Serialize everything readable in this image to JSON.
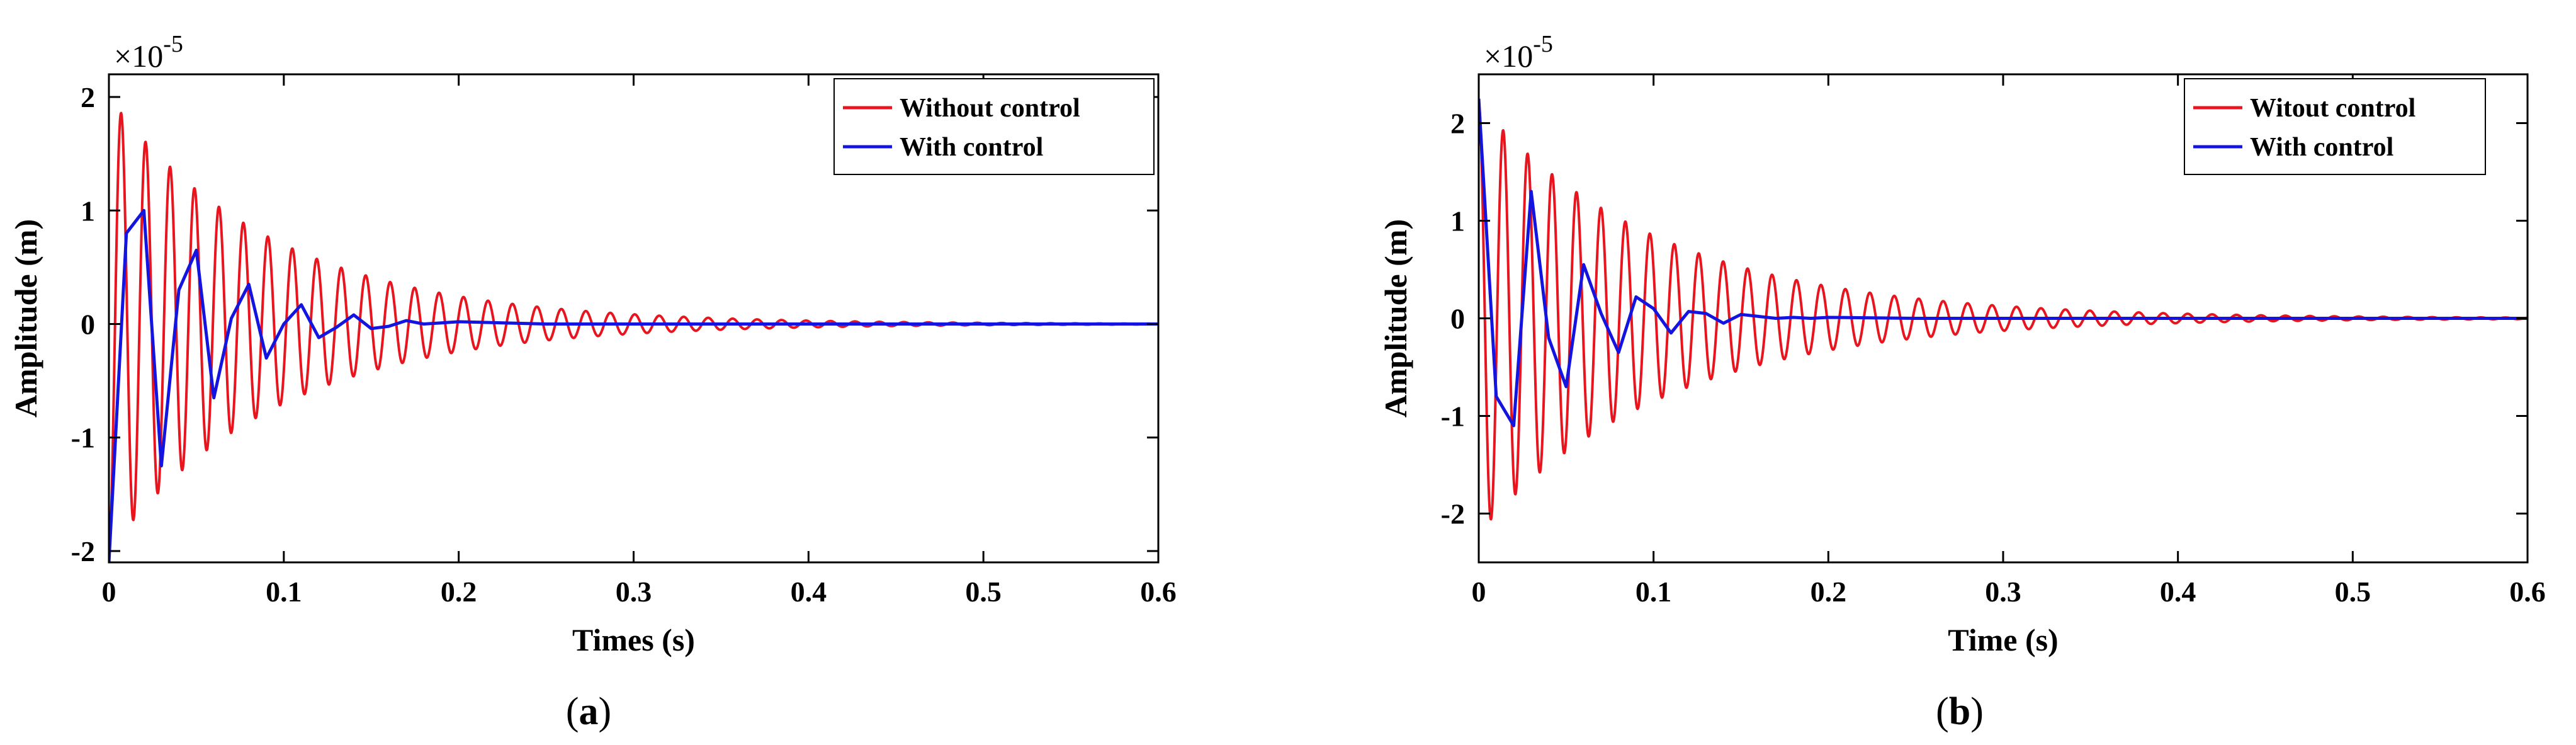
{
  "chart_data": [
    {
      "type": "line",
      "panel_label": "a",
      "panel_caption_open": "(",
      "panel_caption_close": ")",
      "xlabel": "Times (s)",
      "ylabel": "Amplitude (m)",
      "y_exponent_base": "×10",
      "y_exponent_power": "-5",
      "xlim": [
        0,
        0.6
      ],
      "ylim": [
        -2.1,
        2.2
      ],
      "xticks": [
        0,
        0.1,
        0.2,
        0.3,
        0.4,
        0.5,
        0.6
      ],
      "xtick_labels": [
        "0",
        "0.1",
        "0.2",
        "0.3",
        "0.4",
        "0.5",
        "0.6"
      ],
      "yticks": [
        -2,
        -1,
        0,
        1,
        2
      ],
      "ytick_labels": [
        "-2",
        "-1",
        "0",
        "1",
        "2"
      ],
      "legend_position": "top-right",
      "series": [
        {
          "name": "Without control",
          "color": "#e8141e",
          "kind": "damped_sine",
          "amplitude": 2.0,
          "frequency_hz": 71.5,
          "decay_rate": 10.5,
          "phase": -1.5708,
          "t_start": 0,
          "t_end": 0.6
        },
        {
          "name": "With control",
          "color": "#1414e0",
          "kind": "polyline",
          "x": [
            0,
            0.01,
            0.02,
            0.03,
            0.04,
            0.05,
            0.06,
            0.07,
            0.08,
            0.09,
            0.1,
            0.11,
            0.12,
            0.13,
            0.14,
            0.15,
            0.16,
            0.17,
            0.18,
            0.19,
            0.2,
            0.25,
            0.3,
            0.4,
            0.5,
            0.6
          ],
          "y": [
            -2.1,
            0.8,
            1.0,
            -1.25,
            0.3,
            0.65,
            -0.65,
            0.05,
            0.35,
            -0.3,
            0.0,
            0.17,
            -0.12,
            -0.03,
            0.08,
            -0.04,
            -0.02,
            0.03,
            0.0,
            0.01,
            0.02,
            0.0,
            0.0,
            0.0,
            0.0,
            0.0
          ]
        }
      ]
    },
    {
      "type": "line",
      "panel_label": "b",
      "panel_caption_open": "(",
      "panel_caption_close": ")",
      "xlabel": "Time (s)",
      "ylabel": "Amplitude (m)",
      "y_exponent_base": "×10",
      "y_exponent_power": "-5",
      "xlim": [
        0,
        0.6
      ],
      "ylim": [
        -2.5,
        2.5
      ],
      "xticks": [
        0,
        0.1,
        0.2,
        0.3,
        0.4,
        0.5,
        0.6
      ],
      "xtick_labels": [
        "0",
        "0.1",
        "0.2",
        "0.3",
        "0.4",
        "0.5",
        "0.6"
      ],
      "yticks": [
        -2,
        -1,
        0,
        1,
        2
      ],
      "ytick_labels": [
        "-2",
        "-1",
        "0",
        "1",
        "2"
      ],
      "legend_position": "top-right",
      "series": [
        {
          "name": "Witout control",
          "color": "#e8141e",
          "kind": "damped_sine",
          "amplitude": 2.2,
          "frequency_hz": 71.5,
          "decay_rate": 9.5,
          "phase": 1.5708,
          "t_start": 0,
          "t_end": 0.6
        },
        {
          "name": "With control",
          "color": "#1414e0",
          "kind": "polyline",
          "x": [
            0,
            0.01,
            0.02,
            0.03,
            0.04,
            0.05,
            0.06,
            0.07,
            0.08,
            0.09,
            0.1,
            0.11,
            0.12,
            0.13,
            0.14,
            0.15,
            0.16,
            0.17,
            0.18,
            0.19,
            0.2,
            0.25,
            0.3,
            0.4,
            0.5,
            0.6
          ],
          "y": [
            2.25,
            -0.8,
            -1.1,
            1.3,
            -0.2,
            -0.7,
            0.55,
            0.05,
            -0.35,
            0.22,
            0.1,
            -0.15,
            0.07,
            0.05,
            -0.05,
            0.04,
            0.02,
            0.0,
            0.01,
            0.0,
            0.01,
            0.0,
            0.0,
            0.0,
            0.0,
            0.0
          ]
        }
      ]
    }
  ]
}
